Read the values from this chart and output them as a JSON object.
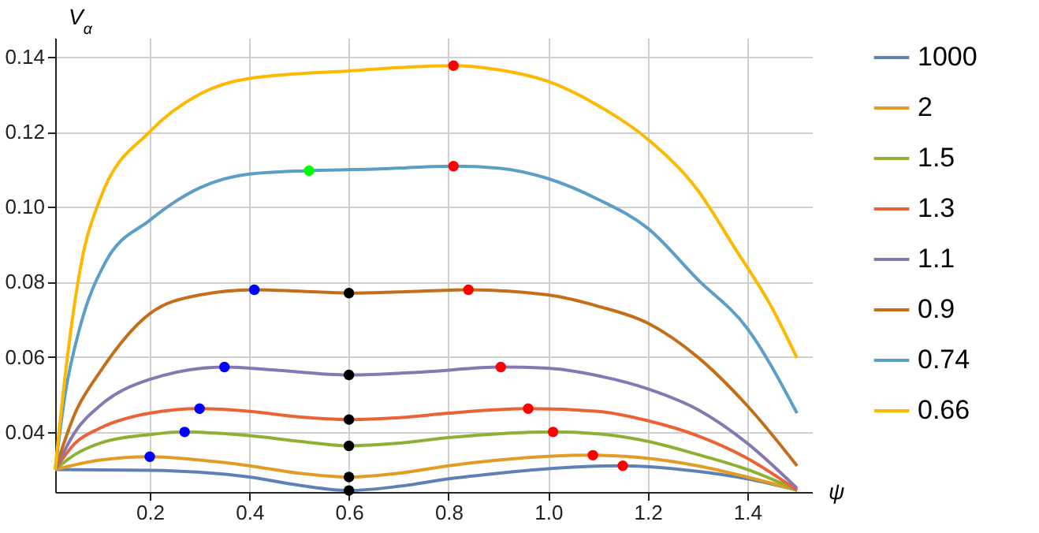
{
  "chart_data": {
    "type": "line",
    "xlabel": "ψ",
    "ylabel": "V$_{α}$",
    "xlim": [
      0.01,
      1.53
    ],
    "ylim": [
      0.024,
      0.145
    ],
    "xticks": [
      0.2,
      0.4,
      0.6,
      0.8,
      {
        "value": 1.0,
        "label": "1.0"
      },
      1.2,
      1.4
    ],
    "yticks": [
      0.04,
      0.06,
      0.08,
      {
        "value": 0.1,
        "label": "0.10"
      },
      0.12,
      0.14
    ],
    "grid": true,
    "legend": "right",
    "line_style": "solid",
    "series": [
      {
        "name": "1000",
        "color": "#5e81b5",
        "x": [
          0.01,
          0.2,
          0.4,
          0.5,
          0.6,
          0.7,
          0.8,
          0.9,
          1.0,
          1.15,
          1.3,
          1.4,
          1.5
        ],
        "values": [
          0.03,
          0.0298,
          0.028,
          0.0258,
          0.0244,
          0.0255,
          0.0275,
          0.029,
          0.0302,
          0.031,
          0.0295,
          0.0275,
          0.0245
        ]
      },
      {
        "name": "2",
        "color": "#e19c24",
        "x": [
          0.01,
          0.1,
          0.2,
          0.3,
          0.4,
          0.5,
          0.6,
          0.7,
          0.8,
          0.9,
          1.0,
          1.09,
          1.2,
          1.3,
          1.4,
          1.5
        ],
        "values": [
          0.03,
          0.0325,
          0.0334,
          0.0325,
          0.031,
          0.029,
          0.028,
          0.029,
          0.031,
          0.0325,
          0.0335,
          0.0338,
          0.033,
          0.031,
          0.028,
          0.0245
        ]
      },
      {
        "name": "1.5",
        "color": "#8fb032",
        "x": [
          0.01,
          0.05,
          0.1,
          0.2,
          0.27,
          0.4,
          0.5,
          0.6,
          0.7,
          0.8,
          0.9,
          1.01,
          1.1,
          1.2,
          1.3,
          1.4,
          1.5
        ],
        "values": [
          0.03,
          0.034,
          0.037,
          0.0393,
          0.04,
          0.039,
          0.0375,
          0.0363,
          0.037,
          0.0385,
          0.0395,
          0.04,
          0.0395,
          0.0375,
          0.034,
          0.03,
          0.0245
        ]
      },
      {
        "name": "1.3",
        "color": "#eb6235",
        "x": [
          0.01,
          0.05,
          0.1,
          0.2,
          0.3,
          0.4,
          0.5,
          0.6,
          0.7,
          0.8,
          0.96,
          1.1,
          1.2,
          1.3,
          1.4,
          1.5
        ],
        "values": [
          0.03,
          0.037,
          0.041,
          0.045,
          0.0462,
          0.0455,
          0.044,
          0.0433,
          0.0438,
          0.045,
          0.0462,
          0.0455,
          0.043,
          0.039,
          0.033,
          0.0245
        ]
      },
      {
        "name": "1.1",
        "color": "#8778b3",
        "x": [
          0.01,
          0.05,
          0.1,
          0.2,
          0.35,
          0.45,
          0.6,
          0.75,
          0.905,
          1.0,
          1.1,
          1.2,
          1.3,
          1.4,
          1.5
        ],
        "values": [
          0.03,
          0.04,
          0.047,
          0.054,
          0.0573,
          0.0565,
          0.0552,
          0.056,
          0.0573,
          0.057,
          0.055,
          0.0515,
          0.046,
          0.037,
          0.025
        ]
      },
      {
        "name": "0.9",
        "color": "#c56e1a",
        "x": [
          0.01,
          0.05,
          0.1,
          0.2,
          0.3,
          0.41,
          0.5,
          0.6,
          0.7,
          0.84,
          1.0,
          1.1,
          1.2,
          1.3,
          1.4,
          1.5
        ],
        "values": [
          0.03,
          0.045,
          0.056,
          0.0715,
          0.0765,
          0.0779,
          0.0775,
          0.077,
          0.0773,
          0.0779,
          0.0765,
          0.0735,
          0.069,
          0.06,
          0.047,
          0.031
        ]
      },
      {
        "name": "0.74",
        "color": "#5d9ec7",
        "x": [
          0.01,
          0.03,
          0.06,
          0.11,
          0.2,
          0.3,
          0.4,
          0.52,
          0.65,
          0.81,
          0.9,
          1.0,
          1.1,
          1.2,
          1.3,
          1.4,
          1.5
        ],
        "values": [
          0.03,
          0.05,
          0.068,
          0.085,
          0.0964,
          0.105,
          0.1087,
          0.1096,
          0.11,
          0.1108,
          0.1103,
          0.1075,
          0.102,
          0.0943,
          0.0807,
          0.0676,
          0.045
        ]
      },
      {
        "name": "0.66",
        "color": "#fdb800",
        "x": [
          0.01,
          0.03,
          0.0625,
          0.1,
          0.2,
          0.3,
          0.4,
          0.6,
          0.81,
          0.9,
          1.0,
          1.1,
          1.2,
          1.3,
          1.375,
          1.45,
          1.5
        ],
        "values": [
          0.03,
          0.055,
          0.085,
          0.102,
          0.12,
          0.13,
          0.1342,
          0.1362,
          0.1376,
          0.1365,
          0.1334,
          0.127,
          0.118,
          0.1045,
          0.089,
          0.073,
          0.0597
        ]
      },
      {
        "type": "scatter",
        "color": "#0000ff",
        "x": [
          0.2,
          0.27,
          0.3,
          0.35,
          0.41
        ],
        "values": [
          0.0334,
          0.04,
          0.0462,
          0.0573,
          0.0779
        ]
      },
      {
        "type": "scatter",
        "color": "#000000",
        "x": [
          0.6,
          0.6,
          0.6,
          0.6,
          0.6,
          0.6
        ],
        "values": [
          0.0244,
          0.028,
          0.0363,
          0.0433,
          0.0552,
          0.077
        ]
      },
      {
        "type": "scatter",
        "color": "#ff0000",
        "x": [
          1.15,
          1.09,
          1.01,
          0.96,
          0.905,
          0.84,
          0.81,
          0.81
        ],
        "values": [
          0.031,
          0.0338,
          0.04,
          0.0462,
          0.0573,
          0.0779,
          0.1108,
          0.1376
        ]
      },
      {
        "type": "scatter",
        "color": "#00ff00",
        "x": [
          0.52
        ],
        "values": [
          0.1096
        ]
      }
    ]
  }
}
